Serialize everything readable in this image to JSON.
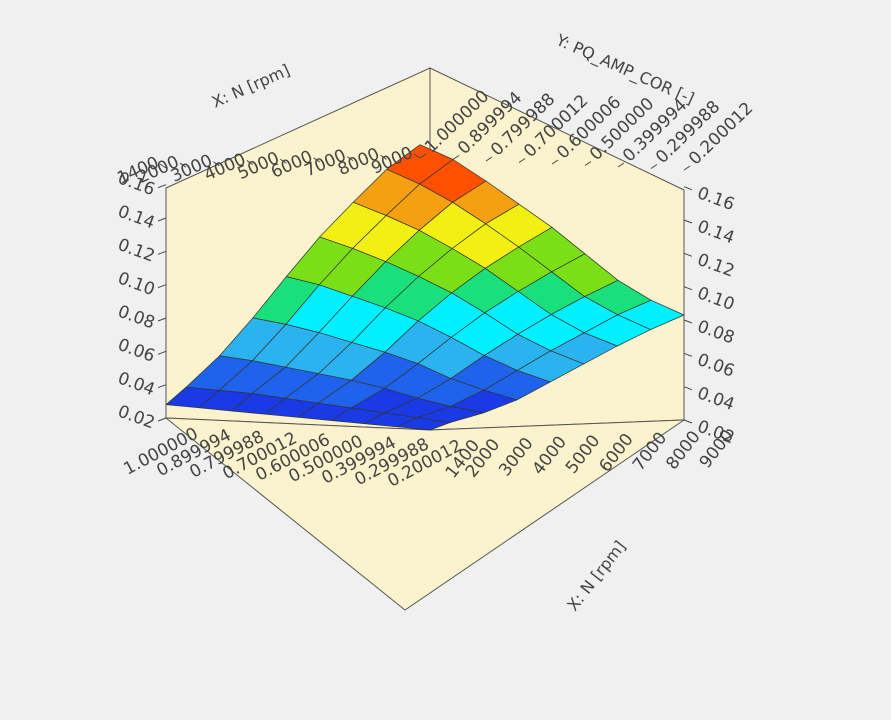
{
  "chart_data": {
    "type": "surface",
    "title": "",
    "x_axis": {
      "label": "X: N [rpm]",
      "range": [
        1400,
        9000
      ],
      "ticks": [
        "1400",
        "2000",
        "3000",
        "4000",
        "5000",
        "6000",
        "7000",
        "8000",
        "9000"
      ]
    },
    "y_axis": {
      "label": "Y: PQ_AMP_COR [-]",
      "range": [
        0.200012,
        1.0
      ],
      "ticks": [
        "0.200012",
        "0.299988",
        "0.399994",
        "0.500000",
        "0.600006",
        "0.700012",
        "0.799988",
        "0.899994",
        "1.000000"
      ]
    },
    "z_axis": {
      "label": "",
      "range": [
        0.02,
        0.17
      ],
      "ticks": [
        "0.02",
        "0.04",
        "0.06",
        "0.08",
        "0.10",
        "0.12",
        "0.14",
        "0.16"
      ]
    },
    "x": [
      1400,
      2000,
      3000,
      4000,
      5000,
      6000,
      7000,
      8000,
      9000
    ],
    "y": [
      0.200012,
      0.299988,
      0.399994,
      0.5,
      0.600006,
      0.700012,
      0.799988,
      0.899994,
      1.0
    ],
    "z": [
      [
        0.02,
        0.024,
        0.029,
        0.036,
        0.046,
        0.056,
        0.066,
        0.075,
        0.083
      ],
      [
        0.021,
        0.026,
        0.032,
        0.041,
        0.052,
        0.063,
        0.073,
        0.083,
        0.091
      ],
      [
        0.022,
        0.028,
        0.036,
        0.047,
        0.06,
        0.072,
        0.083,
        0.093,
        0.102
      ],
      [
        0.023,
        0.03,
        0.041,
        0.055,
        0.07,
        0.084,
        0.096,
        0.107,
        0.117
      ],
      [
        0.024,
        0.032,
        0.045,
        0.061,
        0.079,
        0.095,
        0.109,
        0.121,
        0.132
      ],
      [
        0.025,
        0.034,
        0.048,
        0.066,
        0.086,
        0.104,
        0.12,
        0.134,
        0.145
      ],
      [
        0.026,
        0.036,
        0.051,
        0.071,
        0.092,
        0.112,
        0.13,
        0.146,
        0.158
      ],
      [
        0.027,
        0.037,
        0.054,
        0.075,
        0.098,
        0.119,
        0.138,
        0.156,
        0.17
      ],
      [
        0.028,
        0.038,
        0.056,
        0.078,
        0.102,
        0.125,
        0.145,
        0.164,
        0.178
      ]
    ],
    "colorscale": [
      "#1a3ae6",
      "#1f63ec",
      "#2bb3f0",
      "#00f0ff",
      "#19e07a",
      "#7adf16",
      "#f2f012",
      "#f5a010",
      "#ff5000"
    ],
    "grid": false,
    "legend": "none"
  }
}
